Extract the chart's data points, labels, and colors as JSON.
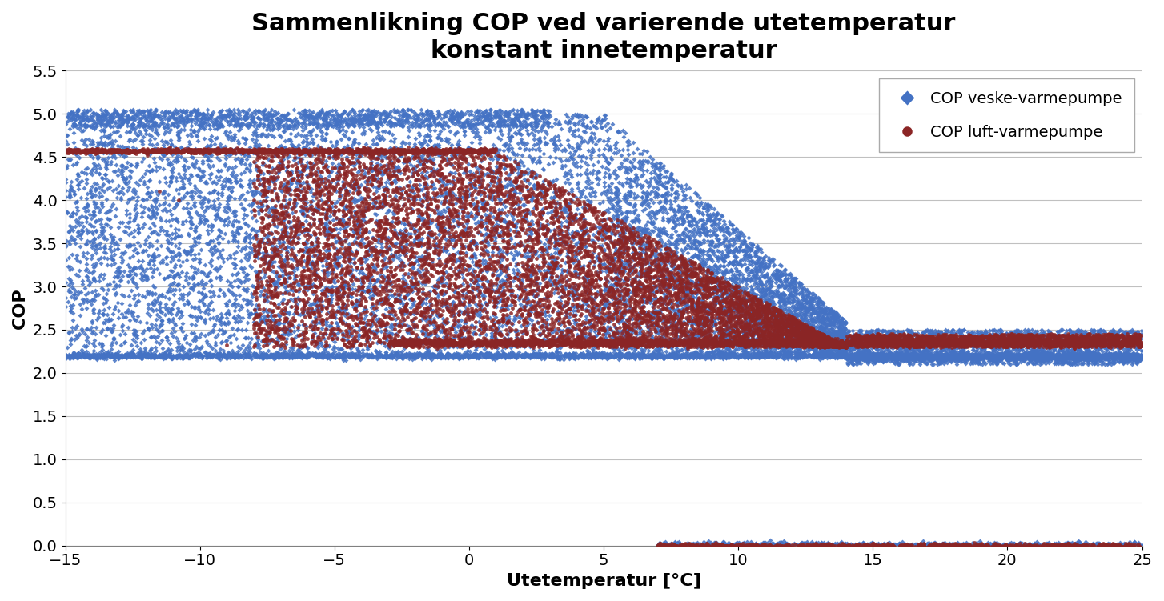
{
  "title_line1": "Sammenlikning COP ved varierende utetemperatur",
  "title_line2": "konstant innetemperatur",
  "xlabel": "Utetemperatur [°C]",
  "ylabel": "COP",
  "legend_veske": "COP veske-varmepumpe",
  "legend_luft": "COP luft-varmepumpe",
  "color_veske": "#4472C4",
  "color_luft": "#8B2525",
  "xlim": [
    -15,
    25
  ],
  "ylim": [
    0,
    5.5
  ],
  "yticks": [
    0,
    0.5,
    1.0,
    1.5,
    2.0,
    2.5,
    3.0,
    3.5,
    4.0,
    4.5,
    5.0,
    5.5
  ],
  "xticks": [
    -15,
    -10,
    -5,
    0,
    5,
    10,
    15,
    20,
    25
  ],
  "title_fontsize": 22,
  "axis_label_fontsize": 16,
  "tick_fontsize": 14,
  "legend_fontsize": 14,
  "seed": 42
}
